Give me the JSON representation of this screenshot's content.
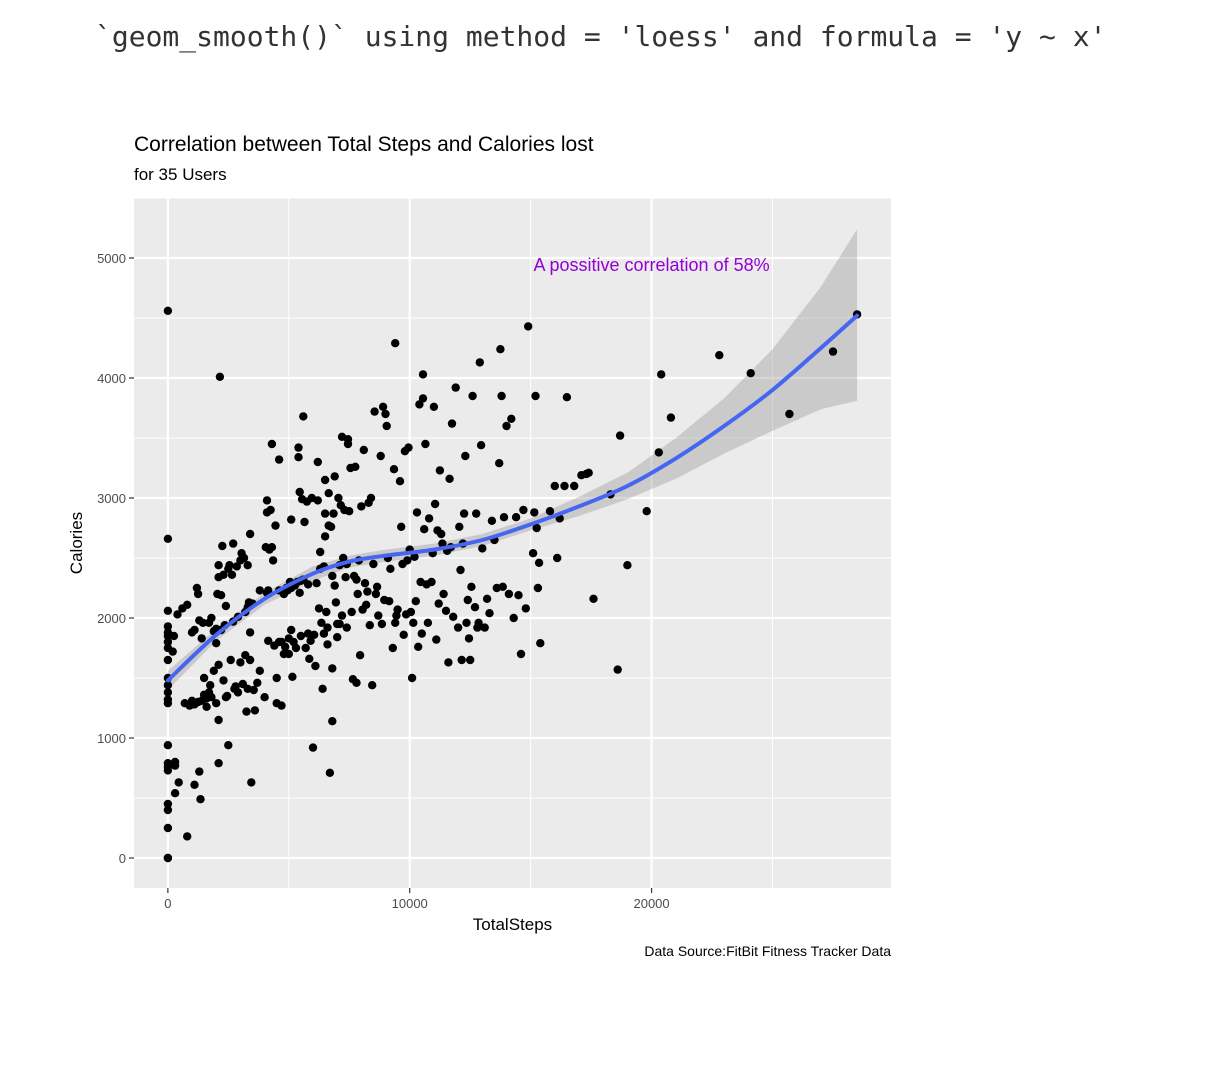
{
  "console_message": "`geom_smooth()` using method = 'loess' and formula = 'y ~ x'",
  "chart_data": {
    "type": "scatter",
    "title": "Correlation between Total Steps and Calories lost",
    "subtitle": "for 35 Users",
    "xlabel": "TotalSteps",
    "ylabel": "Calories",
    "caption": "Data Source:FitBit Fitness Tracker Data",
    "annotation": {
      "text": "A possitive correlation of 58%",
      "x": 20000,
      "y": 4950,
      "color": "#9400D3"
    },
    "xlim": [
      -1400,
      29900
    ],
    "ylim": [
      -250,
      5500
    ],
    "x_ticks": [
      0,
      10000,
      20000
    ],
    "x_tick_labels": [
      "0",
      "10000",
      "20000"
    ],
    "y_ticks": [
      0,
      1000,
      2000,
      3000,
      4000,
      5000
    ],
    "y_tick_labels": [
      "0",
      "1000",
      "2000",
      "3000",
      "4000",
      "5000"
    ],
    "grid": true,
    "panel_color": "#EBEBEB",
    "point_color": "#000000",
    "smooth": {
      "method": "loess",
      "color": "#4665F0",
      "band_color": "#999999",
      "x": [
        0,
        2000,
        4000,
        6000,
        7500,
        9000,
        11000,
        13000,
        15000,
        17000,
        19000,
        21000,
        23000,
        25000,
        27000,
        28500
      ],
      "y": [
        1480,
        1860,
        2160,
        2370,
        2470,
        2520,
        2570,
        2650,
        2780,
        2930,
        3100,
        3330,
        3600,
        3900,
        4250,
        4520
      ],
      "ymin": [
        1400,
        1810,
        2110,
        2310,
        2420,
        2470,
        2520,
        2600,
        2730,
        2850,
        2990,
        3160,
        3370,
        3560,
        3740,
        3810
      ],
      "ymax": [
        1560,
        1910,
        2210,
        2430,
        2520,
        2570,
        2620,
        2700,
        2830,
        3010,
        3210,
        3500,
        3830,
        4240,
        4760,
        5240
      ]
    },
    "points": [
      [
        0,
        4560
      ],
      [
        0,
        2660
      ],
      [
        0,
        2060
      ],
      [
        0,
        1930
      ],
      [
        0,
        1880
      ],
      [
        0,
        1850
      ],
      [
        0,
        1800
      ],
      [
        0,
        1750
      ],
      [
        0,
        1650
      ],
      [
        0,
        1500
      ],
      [
        0,
        1440
      ],
      [
        0,
        1380
      ],
      [
        0,
        1320
      ],
      [
        0,
        1290
      ],
      [
        0,
        940
      ],
      [
        0,
        790
      ],
      [
        0,
        760
      ],
      [
        0,
        730
      ],
      [
        0,
        450
      ],
      [
        0,
        400
      ],
      [
        0,
        250
      ],
      [
        0,
        0
      ],
      [
        0,
        0
      ],
      [
        200,
        1720
      ],
      [
        250,
        1850
      ],
      [
        300,
        540
      ],
      [
        300,
        800
      ],
      [
        300,
        770
      ],
      [
        400,
        2030
      ],
      [
        450,
        630
      ],
      [
        600,
        2080
      ],
      [
        700,
        1290
      ],
      [
        800,
        2110
      ],
      [
        800,
        180
      ],
      [
        900,
        1270
      ],
      [
        1000,
        1880
      ],
      [
        1000,
        1310
      ],
      [
        1100,
        1900
      ],
      [
        1100,
        1280
      ],
      [
        1100,
        610
      ],
      [
        1200,
        2250
      ],
      [
        1250,
        2200
      ],
      [
        1250,
        1300
      ],
      [
        1300,
        1980
      ],
      [
        1300,
        720
      ],
      [
        1350,
        490
      ],
      [
        1400,
        1830
      ],
      [
        1400,
        1310
      ],
      [
        1450,
        1960
      ],
      [
        1500,
        1500
      ],
      [
        1500,
        1360
      ],
      [
        1600,
        1330
      ],
      [
        1600,
        1260
      ],
      [
        1700,
        1960
      ],
      [
        1700,
        1380
      ],
      [
        1750,
        1440
      ],
      [
        1800,
        2000
      ],
      [
        1800,
        1340
      ],
      [
        1900,
        1890
      ],
      [
        1900,
        1560
      ],
      [
        2000,
        1910
      ],
      [
        2000,
        1790
      ],
      [
        2000,
        1290
      ],
      [
        2050,
        2200
      ],
      [
        2100,
        2440
      ],
      [
        2100,
        2340
      ],
      [
        2100,
        1610
      ],
      [
        2100,
        1150
      ],
      [
        2100,
        790
      ],
      [
        2150,
        4010
      ],
      [
        2200,
        2190
      ],
      [
        2200,
        1900
      ],
      [
        2250,
        2600
      ],
      [
        2300,
        2360
      ],
      [
        2300,
        1480
      ],
      [
        2350,
        1940
      ],
      [
        2400,
        2100
      ],
      [
        2400,
        1340
      ],
      [
        2450,
        1350
      ],
      [
        2500,
        2410
      ],
      [
        2500,
        940
      ],
      [
        2550,
        2440
      ],
      [
        2600,
        1650
      ],
      [
        2650,
        2360
      ],
      [
        2700,
        2620
      ],
      [
        2700,
        1970
      ],
      [
        2750,
        1410
      ],
      [
        2800,
        1430
      ],
      [
        2850,
        2430
      ],
      [
        2900,
        2010
      ],
      [
        2900,
        1380
      ],
      [
        3000,
        2480
      ],
      [
        3000,
        1630
      ],
      [
        3050,
        2540
      ],
      [
        3100,
        1450
      ],
      [
        3150,
        2500
      ],
      [
        3200,
        2050
      ],
      [
        3200,
        1690
      ],
      [
        3250,
        1220
      ],
      [
        3300,
        2440
      ],
      [
        3300,
        2090
      ],
      [
        3300,
        1410
      ],
      [
        3350,
        2130
      ],
      [
        3400,
        2700
      ],
      [
        3400,
        1880
      ],
      [
        3400,
        1650
      ],
      [
        3450,
        630
      ],
      [
        3500,
        2120
      ],
      [
        3550,
        1400
      ],
      [
        3600,
        1230
      ],
      [
        3700,
        1460
      ],
      [
        3800,
        2230
      ],
      [
        3800,
        1560
      ],
      [
        4000,
        1340
      ],
      [
        4050,
        2590
      ],
      [
        4100,
        2880
      ],
      [
        4100,
        2980
      ],
      [
        4100,
        2210
      ],
      [
        4150,
        2230
      ],
      [
        4150,
        1810
      ],
      [
        4200,
        2570
      ],
      [
        4250,
        2900
      ],
      [
        4300,
        3450
      ],
      [
        4300,
        2590
      ],
      [
        4350,
        2480
      ],
      [
        4400,
        1770
      ],
      [
        4450,
        2770
      ],
      [
        4500,
        1500
      ],
      [
        4500,
        1290
      ],
      [
        4600,
        3320
      ],
      [
        4600,
        2230
      ],
      [
        4600,
        1800
      ],
      [
        4700,
        1800
      ],
      [
        4700,
        1270
      ],
      [
        4800,
        2200
      ],
      [
        4800,
        1700
      ],
      [
        4850,
        1760
      ],
      [
        4900,
        2250
      ],
      [
        4950,
        2230
      ],
      [
        5000,
        1830
      ],
      [
        5000,
        1700
      ],
      [
        5050,
        2300
      ],
      [
        5100,
        2820
      ],
      [
        5100,
        2250
      ],
      [
        5100,
        1900
      ],
      [
        5150,
        1510
      ],
      [
        5200,
        1800
      ],
      [
        5250,
        2270
      ],
      [
        5300,
        1750
      ],
      [
        5350,
        2300
      ],
      [
        5400,
        3420
      ],
      [
        5400,
        3340
      ],
      [
        5450,
        3050
      ],
      [
        5450,
        2210
      ],
      [
        5500,
        2310
      ],
      [
        5500,
        1850
      ],
      [
        5550,
        2990
      ],
      [
        5600,
        3680
      ],
      [
        5600,
        2320
      ],
      [
        5650,
        2800
      ],
      [
        5700,
        1750
      ],
      [
        5750,
        2970
      ],
      [
        5800,
        2280
      ],
      [
        5800,
        1870
      ],
      [
        5850,
        1660
      ],
      [
        5900,
        1810
      ],
      [
        5950,
        3000
      ],
      [
        6000,
        920
      ],
      [
        6050,
        1860
      ],
      [
        6100,
        1600
      ],
      [
        6150,
        2290
      ],
      [
        6200,
        3300
      ],
      [
        6200,
        2980
      ],
      [
        6250,
        2080
      ],
      [
        6300,
        2550
      ],
      [
        6300,
        2410
      ],
      [
        6350,
        1960
      ],
      [
        6400,
        1410
      ],
      [
        6450,
        2430
      ],
      [
        6450,
        1870
      ],
      [
        6500,
        3150
      ],
      [
        6500,
        2870
      ],
      [
        6500,
        2680
      ],
      [
        6550,
        2050
      ],
      [
        6600,
        1920
      ],
      [
        6600,
        1780
      ],
      [
        6650,
        3040
      ],
      [
        6650,
        2770
      ],
      [
        6700,
        710
      ],
      [
        6750,
        2760
      ],
      [
        6800,
        2350
      ],
      [
        6800,
        1580
      ],
      [
        6800,
        1140
      ],
      [
        6850,
        2870
      ],
      [
        6900,
        3180
      ],
      [
        6900,
        2270
      ],
      [
        6950,
        2130
      ],
      [
        7000,
        1950
      ],
      [
        7000,
        1840
      ],
      [
        7050,
        3000
      ],
      [
        7100,
        2440
      ],
      [
        7100,
        1950
      ],
      [
        7150,
        2940
      ],
      [
        7200,
        3510
      ],
      [
        7200,
        2020
      ],
      [
        7250,
        2500
      ],
      [
        7300,
        2900
      ],
      [
        7350,
        2340
      ],
      [
        7400,
        2450
      ],
      [
        7400,
        1920
      ],
      [
        7450,
        3450
      ],
      [
        7450,
        3490
      ],
      [
        7500,
        2890
      ],
      [
        7550,
        3250
      ],
      [
        7600,
        2050
      ],
      [
        7650,
        1490
      ],
      [
        7700,
        2350
      ],
      [
        7750,
        3260
      ],
      [
        7800,
        2320
      ],
      [
        7800,
        1460
      ],
      [
        7850,
        2200
      ],
      [
        7900,
        2480
      ],
      [
        7950,
        1690
      ],
      [
        8000,
        2930
      ],
      [
        8050,
        2070
      ],
      [
        8100,
        3400
      ],
      [
        8150,
        2290
      ],
      [
        8200,
        2110
      ],
      [
        8250,
        2220
      ],
      [
        8300,
        2960
      ],
      [
        8350,
        1940
      ],
      [
        8400,
        3000
      ],
      [
        8450,
        1440
      ],
      [
        8500,
        2450
      ],
      [
        8550,
        3720
      ],
      [
        8600,
        2200
      ],
      [
        8650,
        2260
      ],
      [
        8700,
        2020
      ],
      [
        8800,
        3350
      ],
      [
        8850,
        1950
      ],
      [
        8900,
        3760
      ],
      [
        8950,
        2150
      ],
      [
        9000,
        3700
      ],
      [
        9050,
        3600
      ],
      [
        9100,
        2500
      ],
      [
        9150,
        2140
      ],
      [
        9200,
        2410
      ],
      [
        9300,
        1750
      ],
      [
        9350,
        3240
      ],
      [
        9400,
        1960
      ],
      [
        9400,
        4290
      ],
      [
        9450,
        2020
      ],
      [
        9500,
        2070
      ],
      [
        9600,
        3140
      ],
      [
        9650,
        2760
      ],
      [
        9700,
        2450
      ],
      [
        9750,
        1860
      ],
      [
        9800,
        3390
      ],
      [
        9850,
        2030
      ],
      [
        9900,
        2480
      ],
      [
        9950,
        3420
      ],
      [
        10000,
        2570
      ],
      [
        10050,
        2050
      ],
      [
        10100,
        1500
      ],
      [
        10150,
        1960
      ],
      [
        10200,
        2510
      ],
      [
        10250,
        2140
      ],
      [
        10300,
        2880
      ],
      [
        10350,
        1760
      ],
      [
        10400,
        3780
      ],
      [
        10450,
        2300
      ],
      [
        10500,
        1870
      ],
      [
        10550,
        4030
      ],
      [
        10550,
        3830
      ],
      [
        10600,
        2740
      ],
      [
        10650,
        3450
      ],
      [
        10700,
        2280
      ],
      [
        10750,
        1960
      ],
      [
        10800,
        2830
      ],
      [
        10900,
        2300
      ],
      [
        10950,
        2540
      ],
      [
        11000,
        3760
      ],
      [
        11050,
        2950
      ],
      [
        11100,
        1820
      ],
      [
        11150,
        2730
      ],
      [
        11200,
        2120
      ],
      [
        11250,
        3230
      ],
      [
        11300,
        2700
      ],
      [
        11350,
        2620
      ],
      [
        11400,
        2200
      ],
      [
        11500,
        2060
      ],
      [
        11550,
        2560
      ],
      [
        11600,
        1630
      ],
      [
        11650,
        3160
      ],
      [
        11700,
        2590
      ],
      [
        11750,
        3620
      ],
      [
        11800,
        2010
      ],
      [
        11900,
        3920
      ],
      [
        12000,
        1920
      ],
      [
        12050,
        2760
      ],
      [
        12100,
        2400
      ],
      [
        12150,
        1650
      ],
      [
        12200,
        2620
      ],
      [
        12250,
        2870
      ],
      [
        12300,
        3350
      ],
      [
        12350,
        1960
      ],
      [
        12400,
        2150
      ],
      [
        12450,
        1830
      ],
      [
        12500,
        1650
      ],
      [
        12550,
        2260
      ],
      [
        12600,
        3850
      ],
      [
        12700,
        2090
      ],
      [
        12750,
        2870
      ],
      [
        12800,
        1920
      ],
      [
        12850,
        1960
      ],
      [
        12900,
        4130
      ],
      [
        12950,
        3440
      ],
      [
        13000,
        2580
      ],
      [
        13100,
        1920
      ],
      [
        13200,
        2160
      ],
      [
        13300,
        2040
      ],
      [
        13400,
        2810
      ],
      [
        13500,
        2650
      ],
      [
        13600,
        2250
      ],
      [
        13700,
        3290
      ],
      [
        13750,
        4240
      ],
      [
        13800,
        3850
      ],
      [
        13850,
        2260
      ],
      [
        13900,
        2840
      ],
      [
        14000,
        3600
      ],
      [
        14100,
        2200
      ],
      [
        14200,
        3660
      ],
      [
        14300,
        2000
      ],
      [
        14400,
        2840
      ],
      [
        14500,
        2190
      ],
      [
        14600,
        1700
      ],
      [
        14700,
        2900
      ],
      [
        14800,
        2080
      ],
      [
        14900,
        4430
      ],
      [
        15100,
        2540
      ],
      [
        15150,
        2880
      ],
      [
        15200,
        3850
      ],
      [
        15250,
        2750
      ],
      [
        15300,
        2250
      ],
      [
        15350,
        2460
      ],
      [
        15400,
        1790
      ],
      [
        15800,
        2890
      ],
      [
        16000,
        3100
      ],
      [
        16100,
        2500
      ],
      [
        16200,
        2830
      ],
      [
        16400,
        3100
      ],
      [
        16500,
        3840
      ],
      [
        16800,
        3100
      ],
      [
        17100,
        3190
      ],
      [
        17300,
        3200
      ],
      [
        17400,
        3210
      ],
      [
        17600,
        2160
      ],
      [
        18300,
        3030
      ],
      [
        18600,
        1570
      ],
      [
        18700,
        3520
      ],
      [
        19000,
        2440
      ],
      [
        19800,
        2890
      ],
      [
        20300,
        3380
      ],
      [
        20400,
        4030
      ],
      [
        20800,
        3670
      ],
      [
        22800,
        4190
      ],
      [
        24100,
        4040
      ],
      [
        25700,
        3700
      ],
      [
        27500,
        4220
      ],
      [
        28500,
        4530
      ]
    ]
  }
}
